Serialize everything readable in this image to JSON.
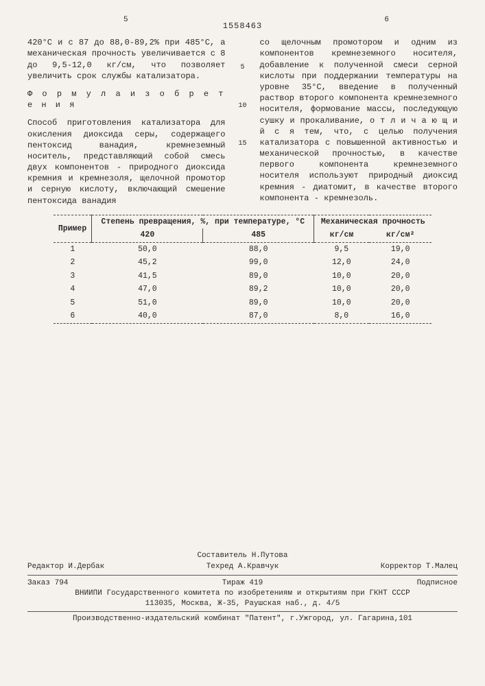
{
  "header": {
    "page_left": "5",
    "page_right": "6",
    "doc_number": "1558463"
  },
  "left_col": {
    "p1": "420°С и с 87 до 88,0-89,2% при 485°С, а механическая прочность увеличива­ется с 8 до 9,5-12,0 кг/см, что поз­воляет увеличить срок службы катали­затора.",
    "formula_title": "Ф о р м у л а   и з о б р е т е н и я",
    "p2": "Способ приготовления катализато­ра для окисления диоксида серы, со­держащего пентоксид ванадия, кремне­земный носитель, представляющий собой смесь двух компонентов - природного диоксида кремния и кремнезоля, щелоч­ной промотор и серную кислоту, вклю­чающий смешение пентоксида ванадия"
  },
  "markers": {
    "m5": "5",
    "m10": "10",
    "m15": "15"
  },
  "right_col": {
    "p1": "со щелочным промотором и одним из компонентов кремнеземного носителя, добавление к полученной смеси серной кислоты при поддержании температуры на уровне 35°С, введение в полученный раствор второго компонента кремне­земного носителя, формование массы, последующую сушку и прокаливание, о т л и ч а ю щ и й с я   тем, что, с целью получения катализатора с повышенной активностью и механической прочностью, в качестве первого компо­нента кремнеземного носителя исполь­зуют природный диоксид кремния - ди­атомит, в качестве второго компонен­та - кремнезоль."
  },
  "table": {
    "head": {
      "c1": "Пример",
      "c2": "Степень превращения, %, при температуре, °С",
      "c3": "Механическая прочность",
      "s1": "420",
      "s2": "485",
      "s3": "кг/см",
      "s4": "кг/см²"
    },
    "rows": [
      [
        "1",
        "50,0",
        "88,0",
        "9,5",
        "19,0"
      ],
      [
        "2",
        "45,2",
        "99,0",
        "12,0",
        "24,0"
      ],
      [
        "3",
        "41,5",
        "89,0",
        "10,0",
        "20,0"
      ],
      [
        "4",
        "47,0",
        "89,2",
        "10,0",
        "20,0"
      ],
      [
        "5",
        "51,0",
        "89,0",
        "10,0",
        "20,0"
      ],
      [
        "6",
        "40,0",
        "87,0",
        "8,0",
        "16,0"
      ]
    ]
  },
  "footer": {
    "sostavitel": "Составитель Н.Путова",
    "redaktor": "Редактор И.Дербак",
    "tehred": "Техред А.Кравчук",
    "korrektor": "Корректор Т.Малец",
    "zakaz": "Заказ 794",
    "tirazh": "Тираж 419",
    "podpisnoe": "Подписное",
    "org": "ВНИИПИ Государственного комитета по изобретениям и открытиям при ГКНТ СССР",
    "addr": "113035, Москва, Ж-35, Раушская наб., д. 4/5",
    "prod": "Производственно-издательский комбинат \"Патент\", г.Ужгород, ул. Гагарина,101"
  }
}
